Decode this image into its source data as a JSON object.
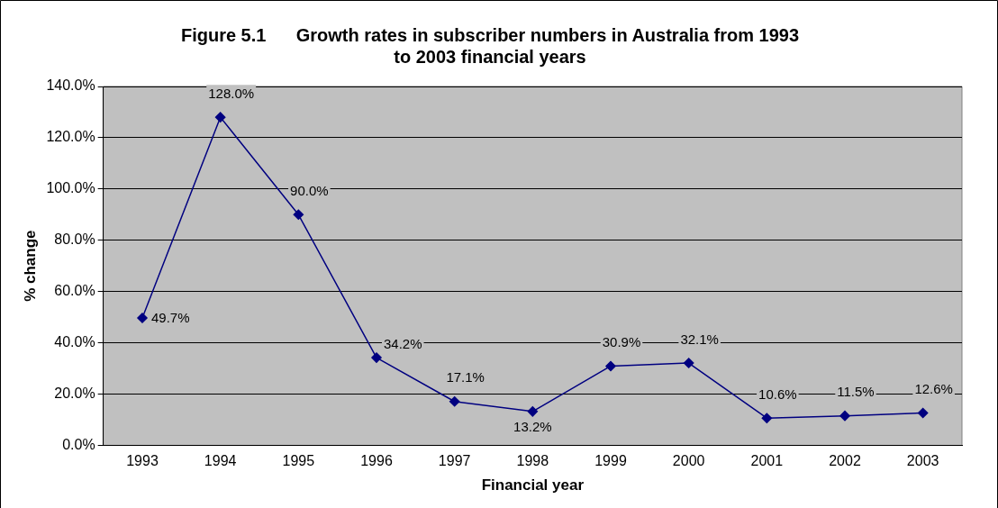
{
  "chart_data": {
    "type": "line",
    "title": "Figure 5.1      Growth rates in subscriber numbers in Australia from 1993 to 2003 financial years",
    "xlabel": "Financial year",
    "ylabel": "% change",
    "categories": [
      "1993",
      "1994",
      "1995",
      "1996",
      "1997",
      "1998",
      "1999",
      "2000",
      "2001",
      "2002",
      "2003"
    ],
    "series": [
      {
        "color": "#000080",
        "values": [
          49.7,
          128.0,
          90.0,
          34.2,
          17.1,
          13.2,
          30.9,
          32.1,
          10.6,
          11.5,
          12.6
        ],
        "value_labels": [
          "49.7%",
          "128.0%",
          "90.0%",
          "34.2%",
          "17.1%",
          "13.2%",
          "30.9%",
          "32.1%",
          "10.6%",
          "11.5%",
          "12.6%"
        ]
      }
    ],
    "ylim": [
      0,
      140
    ],
    "yticks": [
      {
        "value": 0,
        "label": "0.0%"
      },
      {
        "value": 20,
        "label": "20.0%"
      },
      {
        "value": 40,
        "label": "40.0%"
      },
      {
        "value": 60,
        "label": "60.0%"
      },
      {
        "value": 80,
        "label": "80.0%"
      },
      {
        "value": 100,
        "label": "100.0%"
      },
      {
        "value": 120,
        "label": "120.0%"
      },
      {
        "value": 140,
        "label": "140.0%"
      }
    ],
    "grid": "y",
    "legend": false,
    "marker": "diamond",
    "line_style": "solid"
  }
}
